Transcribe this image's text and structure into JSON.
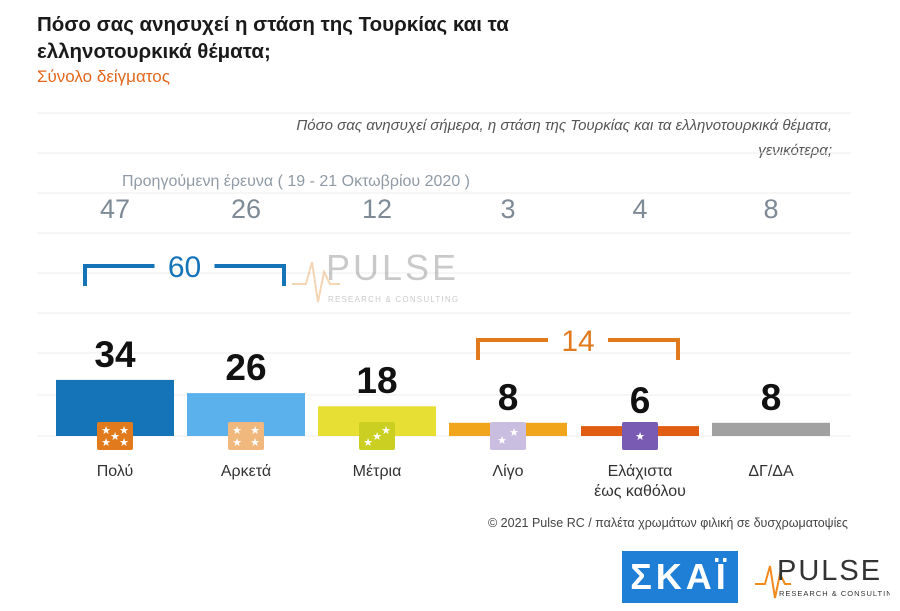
{
  "title": "Πόσο σας ανησυχεί η στάση της Τουρκίας και τα ελληνοτουρκικά θέματα;",
  "subtitle": "Σύνολο δείγματος",
  "question": "Πόσο σας ανησυχεί σήμερα, η στάση της Τουρκίας και τα ελληνοτουρκικά θέματα, γενικότερα;",
  "previous_survey_label": "Προηγούμενη έρευνα   ( 19 - 21 Οκτωβρίου 2020 )",
  "footer": "© 2021 Pulse RC   /   παλέτα χρωμάτων φιλική σε δυσχρωματοψίες",
  "logos": {
    "skai": "ΣΚΑΪ",
    "pulse": "PULSE",
    "pulse_tagline": "RESEARCH & CONSULTING"
  },
  "chart_data": {
    "type": "bar",
    "categories": [
      "Πολύ",
      "Αρκετά",
      "Μέτρια",
      "Λίγο",
      "Ελάχιστα\nέως καθόλου",
      "ΔΓ/ΔΑ"
    ],
    "series": [
      {
        "values": [
          34,
          26,
          18,
          8,
          6,
          8
        ]
      },
      {
        "values": [
          47,
          26,
          12,
          3,
          4,
          8
        ]
      }
    ],
    "groups": [
      {
        "label": "60",
        "categories": [
          "Πολύ",
          "Αρκετά"
        ]
      },
      {
        "label": "14",
        "categories": [
          "Λίγο",
          "Ελάχιστα\nέως καθόλου"
        ]
      }
    ],
    "ylim": [
      0,
      50
    ],
    "grid": true,
    "colors": [
      "#1573b8",
      "#5ab1ec",
      "#e8df34",
      "#f1a51d",
      "#e05d13",
      "#a1a1a1"
    ],
    "group_colors": [
      "#1573b8",
      "#e07a1c"
    ],
    "icon_colors": [
      "#e07a1c",
      "#f0b87c",
      "#cbcf22",
      "#c9bde0",
      "#7a5bb3"
    ],
    "icons": [
      "stars-icon",
      "stars-icon",
      "stars-icon",
      "stars-icon",
      "stars-icon"
    ]
  }
}
